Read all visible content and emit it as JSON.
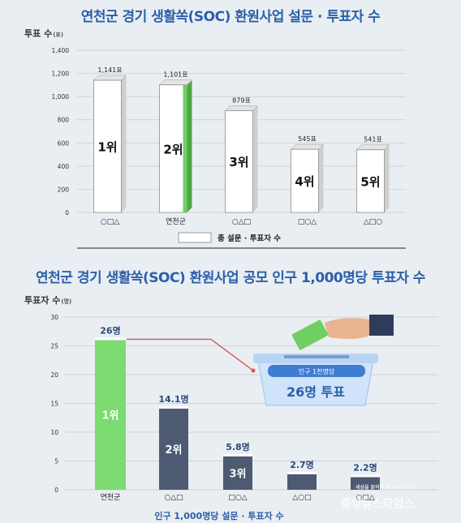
{
  "chart1": {
    "title": "연천군 경기 생활쏙(SOC) 환원사업 설문 · 투표자 수",
    "ylabel": "투표 수",
    "yunit": "(표)",
    "legend": "총 설문 · 투표자 수"
  },
  "chart2": {
    "title": "연천군 경기 생활쏙(SOC) 환원사업 공모 인구 1,000명당 투표자 수",
    "ylabel": "투표자 수",
    "yunit": "(명)",
    "legend": "인구 1,000명당 설문 · 투표자 수",
    "ballot_label": "인구 1천명당",
    "ballot_value": "26명 투표"
  },
  "watermark": "중앙뉴스타임스",
  "watermark_small": "세상을 밝히는 중앙뉴스타임스",
  "chart_data": [
    {
      "type": "bar",
      "title": "연천군 경기 생활쏙(SOC) 환원사업 설문 · 투표자 수",
      "ylabel": "투표 수 (표)",
      "categories": [
        "○□△",
        "연천군",
        "○△□",
        "□○△",
        "△□○"
      ],
      "values": [
        1141,
        1101,
        879,
        545,
        541
      ],
      "value_labels": [
        "1,141표",
        "1,101표",
        "879표",
        "545표",
        "541표"
      ],
      "ranks": [
        "1위",
        "2위",
        "3위",
        "4위",
        "5위"
      ],
      "yticks": [
        "0",
        "200",
        "400",
        "600",
        "800",
        "1,000",
        "1,200",
        "1,400"
      ],
      "ylim": [
        0,
        1400
      ],
      "highlight": "연천군",
      "colors": {
        "bar": "#ffffff",
        "highlight": "#6fcf62",
        "side": "#cfcfcf"
      }
    },
    {
      "type": "bar",
      "title": "연천군 경기 생활쏙(SOC) 환원사업 공모 인구 1,000명당 투표자 수",
      "ylabel": "투표자 수 (명)",
      "categories": [
        "연천군",
        "○△□",
        "□○△",
        "△○□",
        "○□△"
      ],
      "values": [
        26,
        14.1,
        5.8,
        2.7,
        2.2
      ],
      "value_labels": [
        "26명",
        "14.1명",
        "5.8명",
        "2.7명",
        "2.2명"
      ],
      "ranks": [
        "1위",
        "2위",
        "3위",
        "",
        ""
      ],
      "yticks": [
        "0",
        "5",
        "10",
        "15",
        "20",
        "25",
        "30"
      ],
      "ylim": [
        0,
        30
      ],
      "highlight": "연천군",
      "colors": {
        "bar": "#4d5a72",
        "highlight": "#7cdb71",
        "line": "#d9534f"
      }
    }
  ]
}
